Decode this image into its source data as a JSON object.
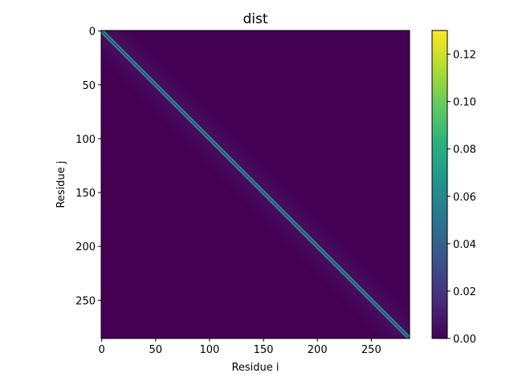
{
  "chart_data": {
    "type": "heatmap",
    "title": "dist",
    "xlabel": "Residue i",
    "ylabel": "Residue j",
    "n_residues": 286,
    "xlim": [
      0,
      285
    ],
    "ylim": [
      285,
      0
    ],
    "x_ticks": [
      0,
      50,
      100,
      150,
      200,
      250
    ],
    "y_ticks": [
      0,
      50,
      100,
      150,
      200,
      250
    ],
    "colormap": "viridis",
    "colorbar": {
      "min": 0.0,
      "max": 0.13,
      "ticks": [
        "0.00",
        "0.02",
        "0.04",
        "0.06",
        "0.08",
        "0.10",
        "0.12"
      ],
      "tick_values": [
        0.0,
        0.02,
        0.04,
        0.06,
        0.08,
        0.1,
        0.12
      ]
    },
    "pattern": {
      "description_values": {
        "background": 0.0,
        "near_diagonal_glow": 0.012,
        "diagonal_band_edge": 0.07,
        "diagonal_center": 0.02
      },
      "diagonal_offset_residues": 1,
      "glow_decay_residues": 25
    },
    "grid": false,
    "legend": "none"
  },
  "colors": {
    "viridis_low": "#440154",
    "viridis_mid": "#21918c",
    "viridis_high": "#fde725"
  }
}
